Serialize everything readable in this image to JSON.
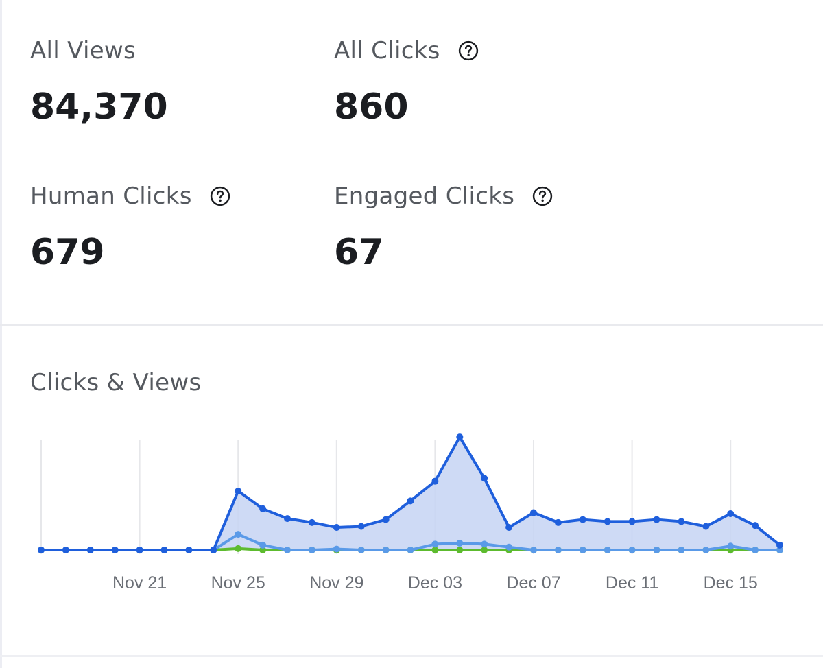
{
  "stats": {
    "all_views": {
      "label": "All Views",
      "value": "84,370"
    },
    "all_clicks": {
      "label": "All Clicks",
      "value": "860"
    },
    "human_clicks": {
      "label": "Human Clicks",
      "value": "679"
    },
    "engaged_clicks": {
      "label": "Engaged Clicks",
      "value": "67"
    }
  },
  "colors": {
    "views": "#1f5fdc",
    "clicks": "#5a9ae8",
    "engaged": "#5dbb2e",
    "fill": "#c5d4f3"
  },
  "chart_data": {
    "type": "area",
    "title": "Clicks & Views",
    "x": [
      "Nov 17",
      "Nov 18",
      "Nov 19",
      "Nov 20",
      "Nov 21",
      "Nov 22",
      "Nov 23",
      "Nov 24",
      "Nov 25",
      "Nov 26",
      "Nov 27",
      "Nov 28",
      "Nov 29",
      "Nov 30",
      "Dec 01",
      "Dec 02",
      "Dec 03",
      "Dec 04",
      "Dec 05",
      "Dec 06",
      "Dec 07",
      "Dec 08",
      "Dec 09",
      "Dec 10",
      "Dec 11",
      "Dec 12",
      "Dec 13",
      "Dec 14",
      "Dec 15",
      "Dec 16",
      "Dec 17"
    ],
    "x_ticks": [
      "Nov 21",
      "Nov 25",
      "Nov 29",
      "Dec 03",
      "Dec 07",
      "Dec 11",
      "Dec 15"
    ],
    "grid": true,
    "ylim": [
      0,
      12000
    ],
    "series": [
      {
        "values": [
          0,
          0,
          0,
          0,
          0,
          0,
          0,
          0,
          6000,
          4200,
          3200,
          2800,
          2300,
          2400,
          3100,
          5000,
          7000,
          11500,
          7300,
          2300,
          3800,
          2800,
          3100,
          2900,
          2900,
          3100,
          2900,
          2400,
          3700,
          2500,
          500
        ]
      },
      {
        "values": [
          0,
          0,
          0,
          0,
          0,
          0,
          0,
          0,
          1600,
          500,
          0,
          0,
          100,
          0,
          0,
          0,
          600,
          700,
          600,
          300,
          0,
          0,
          0,
          0,
          0,
          0,
          0,
          0,
          400,
          0,
          0
        ]
      },
      {
        "values": [
          0,
          0,
          0,
          0,
          0,
          0,
          0,
          0,
          150,
          0,
          0,
          0,
          0,
          0,
          0,
          0,
          0,
          0,
          0,
          0,
          0,
          0,
          0,
          0,
          0,
          0,
          0,
          0,
          0,
          0,
          0
        ]
      }
    ]
  }
}
